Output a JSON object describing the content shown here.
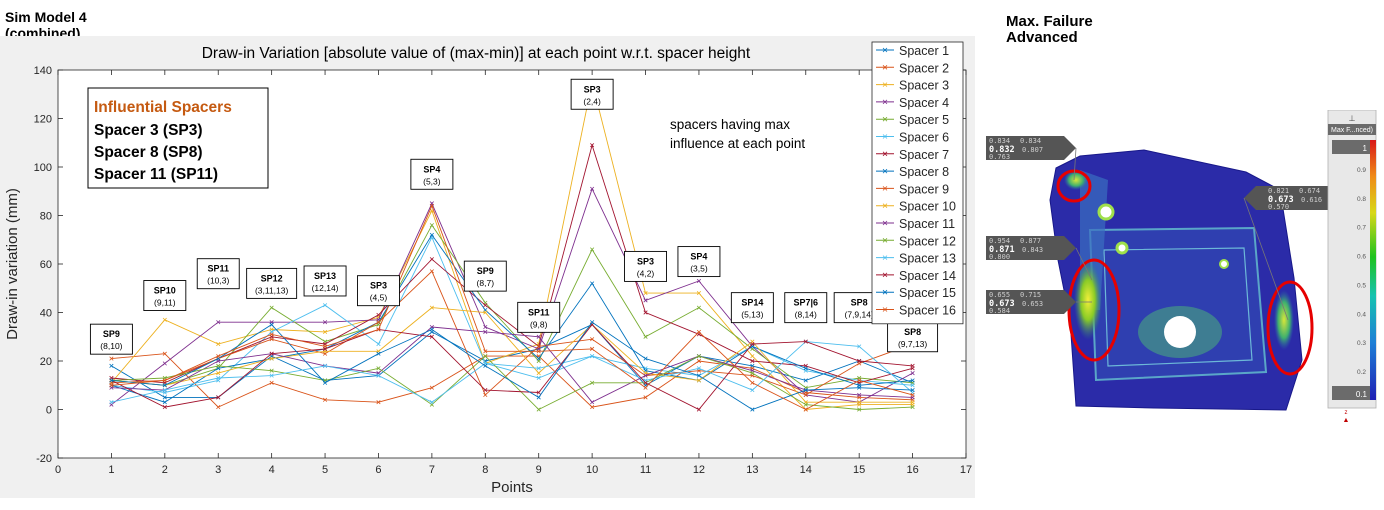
{
  "left_header": [
    "Sim Model 4",
    "(combined)"
  ],
  "right_header": [
    "Max. Failure",
    "Advanced"
  ],
  "chart_data": {
    "type": "line",
    "title": "Draw-in Variation [absolute value of (max-min)] at each point w.r.t. spacer height",
    "xlabel": "Points",
    "ylabel": "Draw-in variation (mm)",
    "xlim": [
      0,
      17
    ],
    "ylim": [
      -20,
      140
    ],
    "xticks": [
      0,
      1,
      2,
      3,
      4,
      5,
      6,
      7,
      8,
      9,
      10,
      11,
      12,
      13,
      14,
      15,
      16,
      17
    ],
    "yticks": [
      -20,
      0,
      20,
      40,
      60,
      80,
      100,
      120,
      140
    ],
    "grid": false,
    "legend_position": "right",
    "x": [
      1,
      2,
      3,
      4,
      5,
      6,
      7,
      8,
      9,
      10,
      11,
      12,
      13,
      14,
      15,
      16
    ],
    "series": [
      {
        "name": "Spacer 1",
        "color": "#0072bd",
        "values": [
          18,
          5,
          5,
          22,
          12,
          14,
          32,
          20,
          25,
          35,
          10,
          22,
          18,
          12,
          20,
          11
        ]
      },
      {
        "name": "Spacer 2",
        "color": "#d95319",
        "values": [
          21,
          23,
          1,
          11,
          4,
          3,
          9,
          22,
          22,
          1,
          5,
          20,
          17,
          7,
          5,
          4
        ]
      },
      {
        "name": "Spacer 3",
        "color": "#edb120",
        "values": [
          11,
          37,
          27,
          33,
          32,
          38,
          82,
          19,
          27,
          135,
          48,
          48,
          22,
          0,
          2,
          2
        ]
      },
      {
        "name": "Spacer 4",
        "color": "#7e2f8e",
        "values": [
          2,
          19,
          36,
          36,
          36,
          37,
          85,
          34,
          25,
          91,
          45,
          53,
          26,
          6,
          3,
          15
        ]
      },
      {
        "name": "Spacer 5",
        "color": "#77ac30",
        "values": [
          12,
          10,
          17,
          42,
          28,
          35,
          76,
          44,
          20,
          66,
          30,
          42,
          25,
          9,
          13,
          11
        ]
      },
      {
        "name": "Spacer 6",
        "color": "#4dbeee",
        "values": [
          10,
          7,
          12,
          32,
          43,
          27,
          71,
          19,
          13,
          22,
          17,
          14,
          26,
          16,
          12,
          10
        ]
      },
      {
        "name": "Spacer 7",
        "color": "#a2142f",
        "values": [
          13,
          11,
          21,
          30,
          27,
          39,
          62,
          43,
          26,
          109,
          40,
          31,
          20,
          18,
          11,
          17
        ]
      },
      {
        "name": "Spacer 8",
        "color": "#0072bd",
        "values": [
          10,
          3,
          17,
          21,
          25,
          36,
          72,
          41,
          21,
          52,
          16,
          12,
          26,
          17,
          10,
          12
        ]
      },
      {
        "name": "Spacer 9",
        "color": "#d95319",
        "values": [
          11,
          12,
          21,
          29,
          23,
          36,
          57,
          6,
          26,
          29,
          14,
          16,
          14,
          6,
          19,
          27
        ]
      },
      {
        "name": "Spacer 10",
        "color": "#edb120",
        "values": [
          12,
          10,
          15,
          21,
          24,
          24,
          42,
          40,
          15,
          35,
          15,
          12,
          28,
          3,
          3,
          3
        ]
      },
      {
        "name": "Spacer 11",
        "color": "#7e2f8e",
        "values": [
          9,
          8,
          20,
          23,
          18,
          15,
          34,
          32,
          30,
          3,
          14,
          22,
          16,
          8,
          6,
          5
        ]
      },
      {
        "name": "Spacer 12",
        "color": "#77ac30",
        "values": [
          12,
          13,
          18,
          16,
          12,
          17,
          2,
          22,
          0,
          11,
          11,
          22,
          15,
          2,
          0,
          1
        ]
      },
      {
        "name": "Spacer 13",
        "color": "#4dbeee",
        "values": [
          3,
          8,
          13,
          14,
          18,
          14,
          3,
          19,
          17,
          22,
          12,
          17,
          8,
          28,
          26,
          7
        ]
      },
      {
        "name": "Spacer 14",
        "color": "#a2142f",
        "values": [
          12,
          1,
          5,
          23,
          25,
          33,
          30,
          8,
          7,
          35,
          11,
          0,
          27,
          28,
          20,
          18
        ]
      },
      {
        "name": "Spacer 15",
        "color": "#0072bd",
        "values": [
          12,
          10,
          21,
          35,
          11,
          23,
          33,
          18,
          5,
          36,
          21,
          14,
          0,
          8,
          9,
          8
        ]
      },
      {
        "name": "Spacer 16",
        "color": "#d95319",
        "values": [
          10,
          12,
          22,
          31,
          26,
          33,
          84,
          24,
          24,
          25,
          9,
          32,
          11,
          0,
          12,
          6
        ]
      }
    ],
    "annotations": [
      {
        "x": 1,
        "y": 29,
        "label": "SP9",
        "sub": "(8,10)"
      },
      {
        "x": 2,
        "y": 47,
        "label": "SP10",
        "sub": "(9,11)"
      },
      {
        "x": 3,
        "y": 56,
        "label": "SP11",
        "sub": "(10,3)"
      },
      {
        "x": 4,
        "y": 52,
        "label": "SP12",
        "sub": "(3,11,13)"
      },
      {
        "x": 5,
        "y": 53,
        "label": "SP13",
        "sub": "(12,14)"
      },
      {
        "x": 6,
        "y": 49,
        "label": "SP3",
        "sub": "(4,5)"
      },
      {
        "x": 7,
        "y": 97,
        "label": "SP4",
        "sub": "(5,3)"
      },
      {
        "x": 8,
        "y": 55,
        "label": "SP9",
        "sub": "(8,7)"
      },
      {
        "x": 9,
        "y": 38,
        "label": "SP11",
        "sub": "(9,8)"
      },
      {
        "x": 10,
        "y": 130,
        "label": "SP3",
        "sub": "(2,4)"
      },
      {
        "x": 11,
        "y": 59,
        "label": "SP3",
        "sub": "(4,2)"
      },
      {
        "x": 12,
        "y": 61,
        "label": "SP4",
        "sub": "(3,5)"
      },
      {
        "x": 13,
        "y": 42,
        "label": "SP14",
        "sub": "(5,13)"
      },
      {
        "x": 14,
        "y": 42,
        "label": "SP7|6",
        "sub": "(8,14)"
      },
      {
        "x": 15,
        "y": 42,
        "label": "SP8",
        "sub": "(7,9,14)"
      },
      {
        "x": 16,
        "y": 30,
        "label": "SP8",
        "sub": "(9,7,13)"
      }
    ],
    "influential_box": {
      "title": "Influential Spacers",
      "title_color": "#c55a11",
      "lines": [
        "Spacer 3 (SP3)",
        "Spacer 8 (SP8)",
        "Spacer 11 (SP11)"
      ]
    },
    "note": [
      "spacers having max",
      "influence at each point"
    ]
  },
  "contour": {
    "colorbar_icon": "pin-icon",
    "colorbar_label": "Max F...nced)",
    "colorbar_max": "1",
    "colorbar_min": "0.1",
    "colorbar_ticks": [
      "0.9",
      "0.8",
      "0.7",
      "0.6",
      "0.5",
      "0.4",
      "0.3",
      "0.2"
    ],
    "axis_marker": "z",
    "tags": [
      {
        "small_top": "0.834",
        "small_right_top": "0.834",
        "main": "0.832",
        "main_right": "0.807",
        "small_bottom": "0.763"
      },
      {
        "small_top": "0.954",
        "small_right_top": "0.877",
        "main": "0.871",
        "main_right": "0.843",
        "small_bottom": "0.800"
      },
      {
        "small_top": "0.655",
        "small_right_top": "0.715",
        "main": "0.673",
        "main_right": "0.653",
        "small_bottom": "0.584"
      },
      {
        "small_top": "0.821",
        "small_right_top": "0.674",
        "main": "0.673",
        "main_right": "0.616",
        "small_bottom": "0.570"
      }
    ]
  }
}
